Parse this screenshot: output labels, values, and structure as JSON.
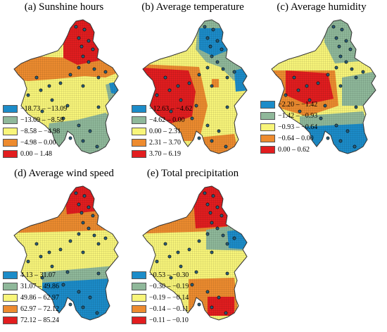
{
  "colors": {
    "blue": "#1c8cc9",
    "green": "#8fb89a",
    "yellow": "#f8f57a",
    "orange": "#ed8b2f",
    "red": "#e21d1f"
  },
  "panels": [
    {
      "title": "(a) Sunshine hours",
      "legend": [
        {
          "label": "−18.73 – −13.09",
          "color": "#1c8cc9"
        },
        {
          "label": "−13.09 – −8.58",
          "color": "#8fb89a"
        },
        {
          "label": "−8.58 – −4.98",
          "color": "#f8f57a"
        },
        {
          "label": "−4.98 – 0.00",
          "color": "#ed8b2f"
        },
        {
          "label": "0.00 – 1.48",
          "color": "#e21d1f"
        }
      ],
      "zones": "a"
    },
    {
      "title": "(b) Average temperature",
      "legend": [
        {
          "label": "−12.63 – −4.62",
          "color": "#1c8cc9"
        },
        {
          "label": "−4.62 – 0.00",
          "color": "#8fb89a"
        },
        {
          "label": "0.00 – 2.31",
          "color": "#f8f57a"
        },
        {
          "label": "2.31 – 3.70",
          "color": "#ed8b2f"
        },
        {
          "label": "3.70 – 6.19",
          "color": "#e21d1f"
        }
      ],
      "zones": "b"
    },
    {
      "title": "(c) Average humidity",
      "legend": [
        {
          "label": "−2.20 – −1.42",
          "color": "#1c8cc9"
        },
        {
          "label": "−1.42 – −0.93",
          "color": "#8fb89a"
        },
        {
          "label": "−0.93 – −0.64",
          "color": "#f8f57a"
        },
        {
          "label": "−0.64 – 0.00",
          "color": "#ed8b2f"
        },
        {
          "label": "0.00 – 0.62",
          "color": "#e21d1f"
        }
      ],
      "zones": "c"
    },
    {
      "title": "(d) Average wind speed",
      "legend": [
        {
          "label": "4.13 – 31.07",
          "color": "#1c8cc9"
        },
        {
          "label": "31.07 – 49.86",
          "color": "#8fb89a"
        },
        {
          "label": "49.86 – 62.97",
          "color": "#f8f57a"
        },
        {
          "label": "62.97 – 72.12",
          "color": "#ed8b2f"
        },
        {
          "label": "72.12 – 85.24",
          "color": "#e21d1f"
        }
      ],
      "zones": "d"
    },
    {
      "title": "(e) Total precipitation",
      "legend": [
        {
          "label": "−0.53 – −0.30",
          "color": "#1c8cc9"
        },
        {
          "label": "−0.30 – −0.19",
          "color": "#8fb89a"
        },
        {
          "label": "−0.19 – −0.14",
          "color": "#f8f57a"
        },
        {
          "label": "−0.14 – −0.11",
          "color": "#ed8b2f"
        },
        {
          "label": "−0.11 – −0.10",
          "color": "#e21d1f"
        }
      ],
      "zones": "e"
    }
  ]
}
